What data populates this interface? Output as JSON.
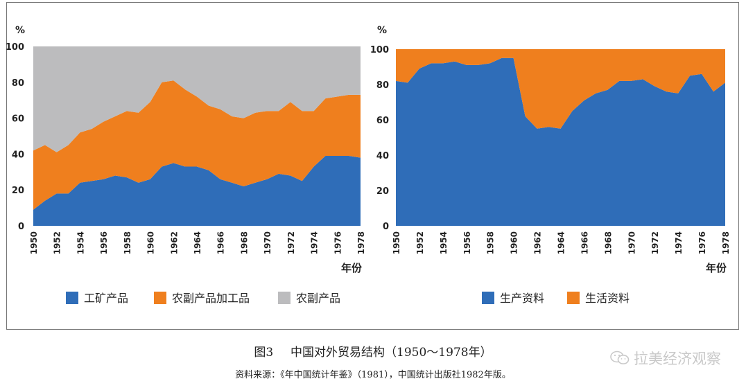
{
  "chart_data": [
    {
      "type": "area",
      "stacked": true,
      "percent_label": "%",
      "xlabel": "年份",
      "ylim": [
        0,
        100
      ],
      "yticks": [
        0,
        20,
        40,
        60,
        80,
        100
      ],
      "x": [
        1950,
        1951,
        1952,
        1953,
        1954,
        1955,
        1956,
        1957,
        1958,
        1959,
        1960,
        1961,
        1962,
        1963,
        1964,
        1965,
        1966,
        1967,
        1968,
        1969,
        1970,
        1971,
        1972,
        1973,
        1974,
        1975,
        1976,
        1977,
        1978
      ],
      "xtick_labels": [
        "1950",
        "1952",
        "1954",
        "1956",
        "1958",
        "1960",
        "1962",
        "1964",
        "1966",
        "1968",
        "1970",
        "1972",
        "1974",
        "1976",
        "1978"
      ],
      "series": [
        {
          "name": "工矿产品",
          "color": "#2f6db8",
          "values": [
            9,
            14,
            18,
            18,
            24,
            25,
            26,
            28,
            27,
            24,
            26,
            33,
            35,
            33,
            33,
            31,
            26,
            24,
            22,
            24,
            26,
            29,
            28,
            25,
            33,
            39,
            39,
            39,
            38
          ]
        },
        {
          "name": "农副产品加工品",
          "color": "#ef7f1e",
          "values": [
            33,
            31,
            23,
            27,
            28,
            29,
            32,
            33,
            37,
            39,
            43,
            47,
            46,
            43,
            39,
            36,
            39,
            37,
            38,
            39,
            38,
            35,
            41,
            39,
            31,
            32,
            33,
            34,
            35
          ]
        },
        {
          "name": "农副产品",
          "color": "#bcbcbe",
          "values": [
            58,
            55,
            59,
            55,
            48,
            46,
            42,
            39,
            36,
            37,
            31,
            20,
            19,
            24,
            28,
            33,
            35,
            39,
            40,
            37,
            36,
            36,
            31,
            36,
            36,
            29,
            28,
            27,
            27
          ]
        }
      ]
    },
    {
      "type": "area",
      "stacked": true,
      "percent_label": "%",
      "xlabel": "年份",
      "ylim": [
        0,
        100
      ],
      "yticks": [
        0,
        20,
        40,
        60,
        80,
        100
      ],
      "x": [
        1950,
        1951,
        1952,
        1953,
        1954,
        1955,
        1956,
        1957,
        1958,
        1959,
        1960,
        1961,
        1962,
        1963,
        1964,
        1965,
        1966,
        1967,
        1968,
        1969,
        1970,
        1971,
        1972,
        1973,
        1974,
        1975,
        1976,
        1977,
        1978
      ],
      "xtick_labels": [
        "1950",
        "1952",
        "1954",
        "1956",
        "1958",
        "1960",
        "1962",
        "1964",
        "1966",
        "1968",
        "1970",
        "1972",
        "1974",
        "1976",
        "1978"
      ],
      "series": [
        {
          "name": "生产资料",
          "color": "#2f6db8",
          "values": [
            82,
            81,
            89,
            92,
            92,
            93,
            91,
            91,
            92,
            95,
            95,
            62,
            55,
            56,
            55,
            65,
            71,
            75,
            77,
            82,
            82,
            83,
            79,
            76,
            75,
            85,
            86,
            76,
            81
          ]
        },
        {
          "name": "生活资料",
          "color": "#ef7f1e",
          "values": [
            18,
            19,
            11,
            8,
            8,
            7,
            9,
            9,
            8,
            5,
            5,
            38,
            45,
            44,
            45,
            35,
            29,
            25,
            23,
            18,
            18,
            17,
            21,
            24,
            25,
            15,
            14,
            24,
            19
          ]
        }
      ]
    }
  ],
  "caption": {
    "figure_no": "图3",
    "title": "中国对外贸易结构（1950～1978年）"
  },
  "source": "资料来源：《年中国统计年鉴》（1981），中国统计出版社1982年版。",
  "watermark": {
    "icon": "wechat-icon",
    "text": "拉美经济观察"
  }
}
